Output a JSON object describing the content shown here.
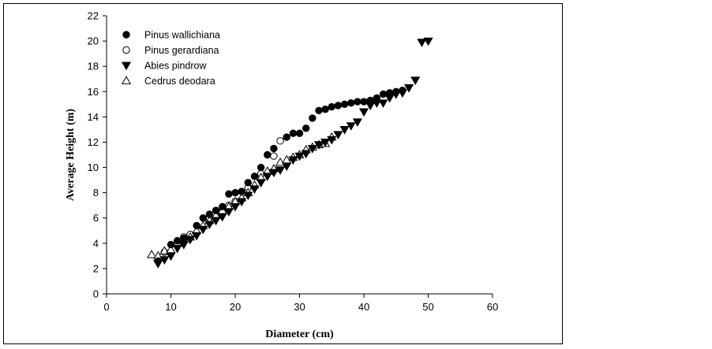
{
  "chart_data": {
    "type": "scatter",
    "title": "",
    "xlabel": "Diameter (cm)",
    "ylabel": "Average Height (m)",
    "xlim": [
      0,
      60
    ],
    "ylim": [
      0,
      22
    ],
    "xticks": [
      0,
      10,
      20,
      30,
      40,
      50,
      60
    ],
    "yticks": [
      0,
      2,
      4,
      6,
      8,
      10,
      12,
      14,
      16,
      18,
      20,
      22
    ],
    "grid": false,
    "legend_position": "top-left",
    "series": [
      {
        "name": "Pinus wallichiana",
        "marker": "filled-circle",
        "points": [
          [
            8,
            2.6
          ],
          [
            10,
            3.9
          ],
          [
            11,
            4.2
          ],
          [
            12,
            4.4
          ],
          [
            14,
            5.4
          ],
          [
            15,
            6.0
          ],
          [
            16,
            6.3
          ],
          [
            17,
            6.6
          ],
          [
            18,
            6.9
          ],
          [
            19,
            7.9
          ],
          [
            20,
            8.0
          ],
          [
            21,
            8.1
          ],
          [
            22,
            8.8
          ],
          [
            23,
            9.3
          ],
          [
            24,
            10.0
          ],
          [
            25,
            11.0
          ],
          [
            26,
            11.5
          ],
          [
            28,
            12.4
          ],
          [
            29,
            12.7
          ],
          [
            30,
            12.7
          ],
          [
            31,
            13.1
          ],
          [
            32,
            13.9
          ],
          [
            33,
            14.5
          ],
          [
            34,
            14.6
          ],
          [
            35,
            14.8
          ],
          [
            36,
            14.9
          ],
          [
            37,
            15.0
          ],
          [
            38,
            15.1
          ],
          [
            39,
            15.2
          ],
          [
            40,
            15.2
          ],
          [
            41,
            15.3
          ],
          [
            42,
            15.5
          ],
          [
            43,
            15.8
          ],
          [
            44,
            15.9
          ],
          [
            45,
            16.0
          ],
          [
            46,
            16.1
          ]
        ]
      },
      {
        "name": "Pinus gerardiana",
        "marker": "open-circle",
        "points": [
          [
            9,
            3.3
          ],
          [
            12,
            4.5
          ],
          [
            13,
            4.7
          ],
          [
            16,
            6.0
          ],
          [
            18,
            6.5
          ],
          [
            19,
            7.0
          ],
          [
            20,
            7.3
          ],
          [
            22,
            8.4
          ],
          [
            24,
            9.5
          ],
          [
            26,
            10.9
          ],
          [
            27,
            12.1
          ]
        ]
      },
      {
        "name": "Abies pindrow",
        "marker": "filled-triangle-down",
        "points": [
          [
            8,
            2.4
          ],
          [
            9,
            2.7
          ],
          [
            10,
            3.0
          ],
          [
            11,
            3.6
          ],
          [
            12,
            3.9
          ],
          [
            13,
            4.3
          ],
          [
            14,
            4.6
          ],
          [
            15,
            5.1
          ],
          [
            16,
            5.5
          ],
          [
            17,
            5.8
          ],
          [
            18,
            6.1
          ],
          [
            19,
            6.5
          ],
          [
            20,
            6.9
          ],
          [
            21,
            7.3
          ],
          [
            22,
            7.8
          ],
          [
            23,
            8.3
          ],
          [
            24,
            8.8
          ],
          [
            25,
            9.3
          ],
          [
            26,
            9.6
          ],
          [
            27,
            9.8
          ],
          [
            28,
            10.1
          ],
          [
            29,
            10.6
          ],
          [
            30,
            10.9
          ],
          [
            31,
            11.1
          ],
          [
            32,
            11.5
          ],
          [
            33,
            11.8
          ],
          [
            34,
            12.0
          ],
          [
            35,
            12.2
          ],
          [
            36,
            12.6
          ],
          [
            37,
            13.0
          ],
          [
            38,
            13.3
          ],
          [
            39,
            13.6
          ],
          [
            40,
            14.4
          ],
          [
            41,
            14.9
          ],
          [
            42,
            15.1
          ],
          [
            43,
            15.1
          ],
          [
            44,
            15.5
          ],
          [
            45,
            15.8
          ],
          [
            46,
            15.9
          ],
          [
            47,
            16.3
          ],
          [
            48,
            16.9
          ],
          [
            49,
            19.9
          ],
          [
            50,
            20.0
          ]
        ]
      },
      {
        "name": "Cedrus deodara",
        "marker": "open-triangle-up",
        "points": [
          [
            7,
            3.1
          ],
          [
            8,
            3.0
          ],
          [
            9,
            3.4
          ],
          [
            10,
            3.5
          ],
          [
            11,
            4.0
          ],
          [
            12,
            4.3
          ],
          [
            13,
            4.5
          ],
          [
            14,
            5.0
          ],
          [
            15,
            5.4
          ],
          [
            16,
            5.8
          ],
          [
            17,
            6.2
          ],
          [
            18,
            6.6
          ],
          [
            19,
            6.9
          ],
          [
            20,
            7.3
          ],
          [
            21,
            7.6
          ],
          [
            22,
            8.0
          ],
          [
            23,
            8.6
          ],
          [
            24,
            9.2
          ],
          [
            25,
            9.7
          ],
          [
            26,
            9.9
          ],
          [
            27,
            10.4
          ],
          [
            28,
            10.6
          ],
          [
            29,
            10.8
          ],
          [
            30,
            11.0
          ],
          [
            31,
            11.4
          ],
          [
            32,
            11.6
          ],
          [
            33,
            11.8
          ],
          [
            34,
            11.9
          ],
          [
            35,
            12.4
          ]
        ]
      }
    ]
  }
}
